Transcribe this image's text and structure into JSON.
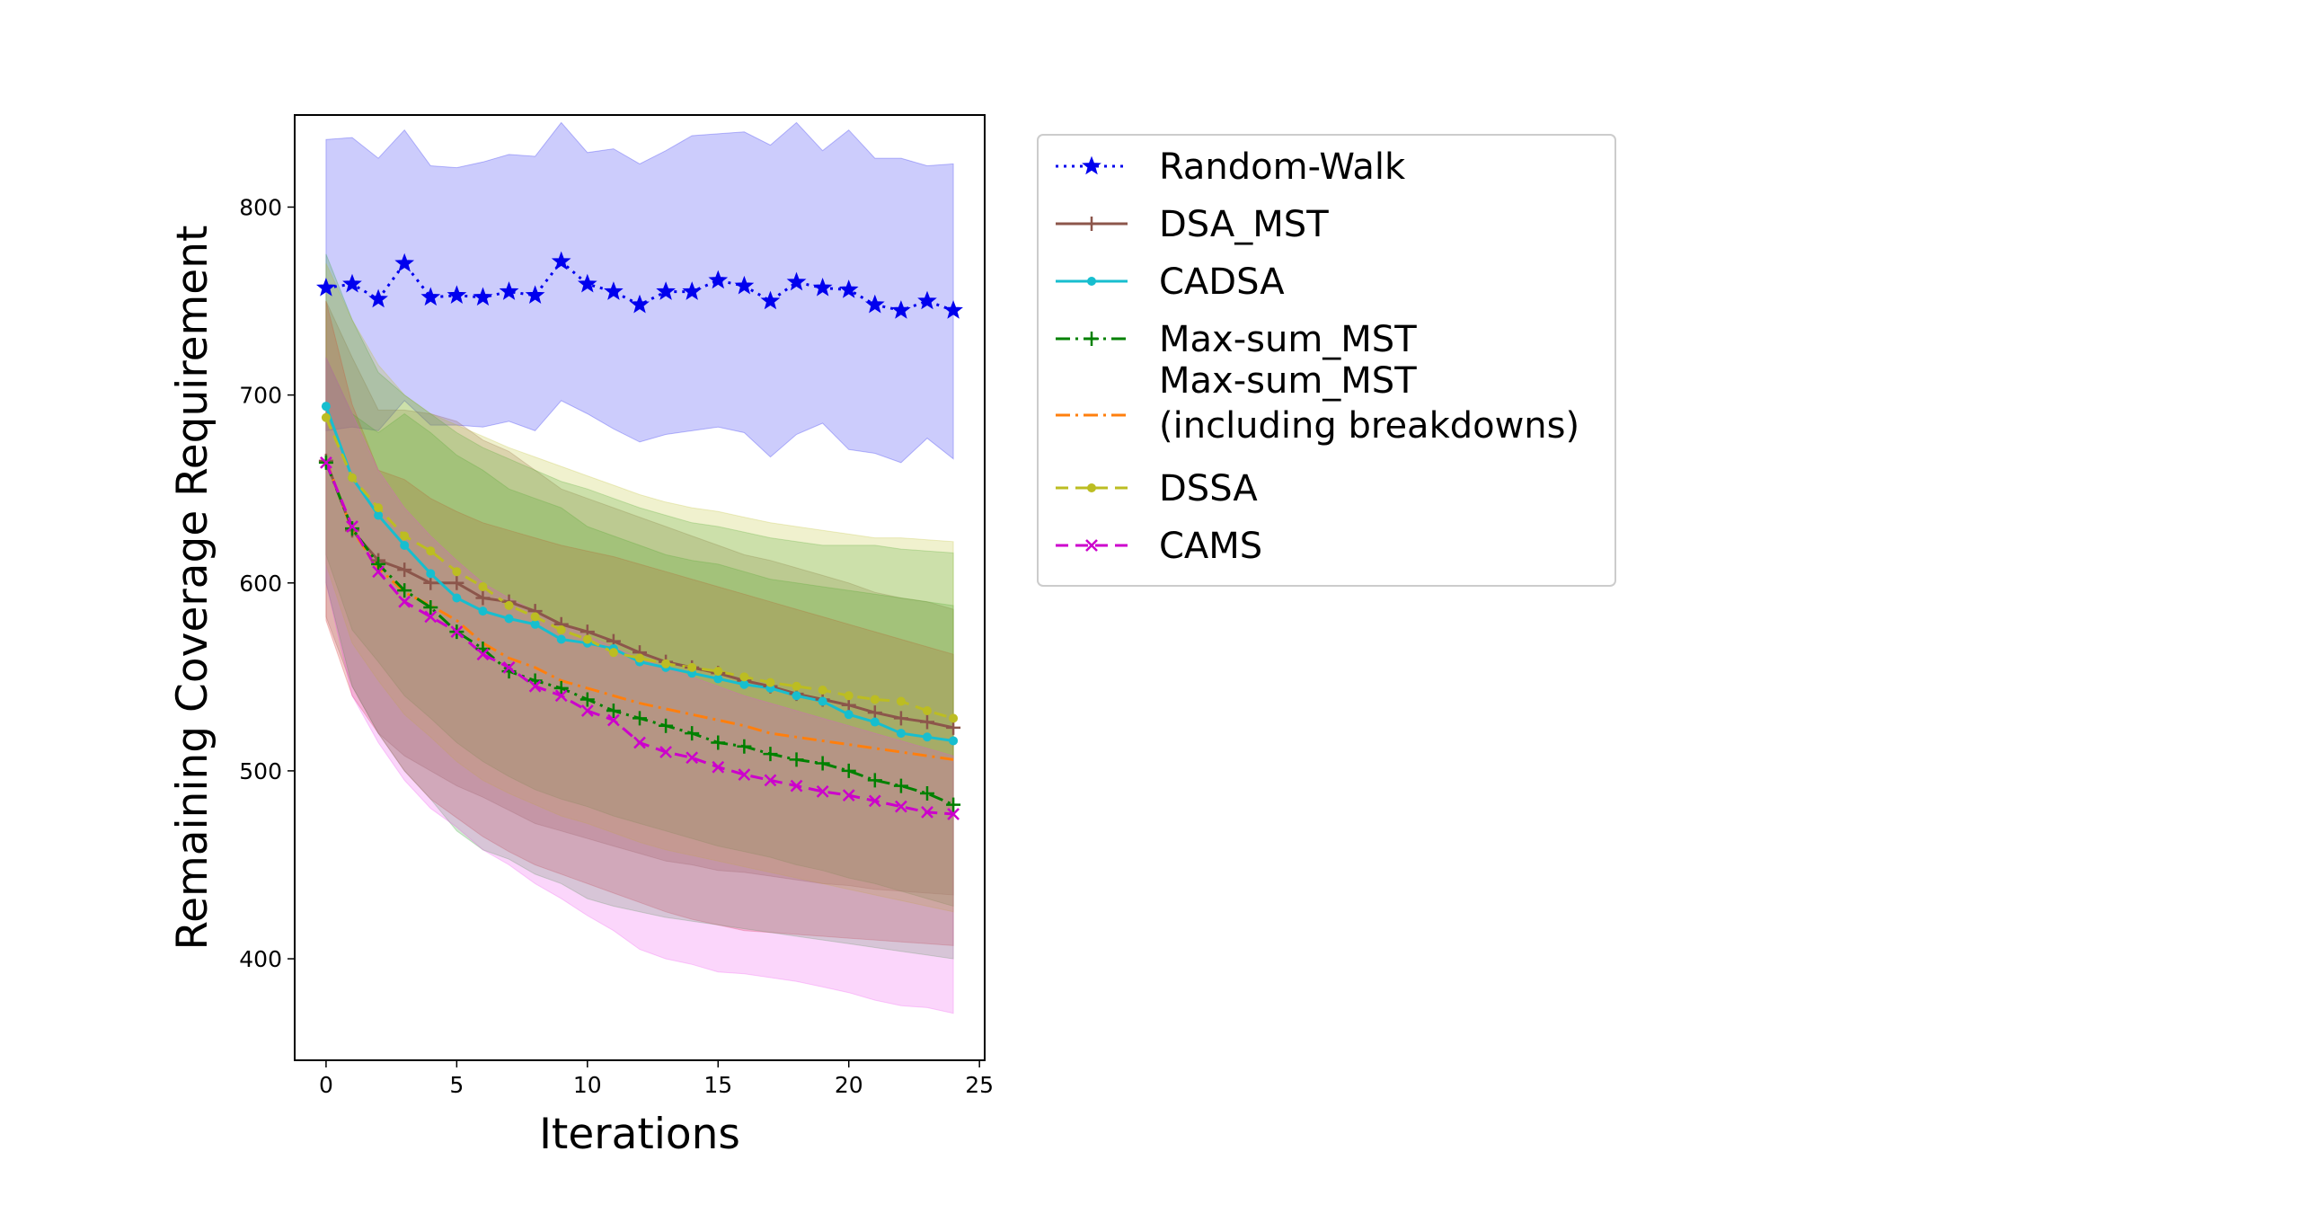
{
  "chart_data": {
    "type": "line",
    "title": "",
    "xlabel": "Iterations",
    "ylabel": "Remaining Coverage Requirement",
    "xlim": [
      -1.2,
      25.2
    ],
    "ylim": [
      346,
      849
    ],
    "xticks": [
      0,
      5,
      10,
      15,
      20,
      25
    ],
    "yticks": [
      400,
      500,
      600,
      700,
      800
    ],
    "grid": false,
    "legend_position": "outside-right-top",
    "x": [
      0,
      1,
      2,
      3,
      4,
      5,
      6,
      7,
      8,
      9,
      10,
      11,
      12,
      13,
      14,
      15,
      16,
      17,
      18,
      19,
      20,
      21,
      22,
      23,
      24
    ],
    "series": [
      {
        "name": "Random-Walk",
        "color": "#0000ee",
        "line_style": "dotted",
        "marker": "star",
        "band_color": "#0000ee",
        "values": [
          757,
          759,
          751,
          770,
          752,
          753,
          752,
          755,
          753,
          771,
          759,
          755,
          748,
          755,
          755,
          761,
          758,
          750,
          760,
          757,
          756,
          748,
          745,
          750,
          745
        ],
        "band_upper": [
          836,
          837,
          826,
          841,
          822,
          821,
          824,
          828,
          827,
          845,
          829,
          831,
          823,
          830,
          838,
          839,
          840,
          833,
          845,
          830,
          841,
          826,
          826,
          822,
          823
        ],
        "band_lower": [
          681,
          683,
          681,
          697,
          684,
          684,
          683,
          686,
          681,
          697,
          690,
          682,
          675,
          679,
          681,
          683,
          680,
          667,
          679,
          685,
          671,
          669,
          664,
          677,
          666
        ]
      },
      {
        "name": "DSA_MST",
        "color": "#8c564b",
        "line_style": "solid",
        "marker": "plus",
        "band_color": "#8c564b",
        "values": [
          665,
          628,
          612,
          607,
          600,
          600,
          592,
          590,
          585,
          578,
          574,
          569,
          563,
          558,
          555,
          552,
          548,
          545,
          541,
          538,
          535,
          531,
          528,
          526,
          523
        ],
        "band_upper": [
          750,
          720,
          692,
          692,
          690,
          686,
          676,
          670,
          660,
          650,
          645,
          640,
          635,
          630,
          625,
          620,
          615,
          612,
          608,
          604,
          600,
          595,
          592,
          590,
          586
        ],
        "band_lower": [
          582,
          545,
          520,
          508,
          500,
          492,
          486,
          479,
          472,
          468,
          464,
          460,
          456,
          452,
          450,
          447,
          446,
          444,
          442,
          440,
          439,
          437,
          436,
          435,
          434
        ]
      },
      {
        "name": "CADSA",
        "color": "#17becf",
        "line_style": "solid",
        "marker": "dot",
        "band_color": "#2ca02c",
        "values": [
          694,
          656,
          636,
          620,
          605,
          592,
          585,
          581,
          578,
          570,
          568,
          565,
          558,
          555,
          552,
          549,
          546,
          544,
          540,
          537,
          530,
          526,
          520,
          518,
          516
        ],
        "band_upper": [
          775,
          740,
          712,
          700,
          690,
          680,
          672,
          666,
          660,
          654,
          650,
          645,
          640,
          636,
          632,
          630,
          627,
          624,
          622,
          620,
          620,
          620,
          618,
          617,
          616
        ],
        "band_lower": [
          615,
          575,
          558,
          540,
          528,
          515,
          505,
          497,
          490,
          485,
          481,
          476,
          472,
          468,
          464,
          460,
          457,
          454,
          450,
          447,
          443,
          440,
          436,
          432,
          428
        ]
      },
      {
        "name": "Max-sum_MST\n(including breakdowns)",
        "color": "#ff7f0e",
        "line_style": "dashdot",
        "marker": "none",
        "band_color": "#d62728",
        "values": [
          665,
          628,
          608,
          595,
          588,
          580,
          568,
          560,
          555,
          548,
          544,
          540,
          536,
          533,
          530,
          527,
          524,
          520,
          518,
          516,
          514,
          512,
          510,
          508,
          506
        ],
        "band_upper": [
          750,
          695,
          660,
          655,
          645,
          638,
          632,
          628,
          624,
          620,
          617,
          614,
          610,
          606,
          602,
          598,
          594,
          590,
          586,
          582,
          578,
          574,
          570,
          566,
          562
        ],
        "band_lower": [
          580,
          540,
          520,
          500,
          485,
          475,
          465,
          457,
          450,
          445,
          440,
          435,
          430,
          425,
          421,
          418,
          415,
          414,
          413,
          412,
          411,
          410,
          409,
          408,
          407
        ]
      },
      {
        "name": "Max-sum_MST",
        "color": "#008000",
        "line_style": "dashdot",
        "marker": "plus",
        "band_color": "#2ca02c",
        "values": [
          664,
          629,
          610,
          596,
          587,
          574,
          565,
          553,
          548,
          544,
          538,
          532,
          528,
          524,
          520,
          515,
          513,
          509,
          506,
          504,
          500,
          495,
          492,
          488,
          482
        ],
        "band_upper": [
          720,
          690,
          680,
          690,
          680,
          668,
          660,
          650,
          645,
          640,
          630,
          625,
          620,
          615,
          612,
          610,
          606,
          602,
          600,
          598,
          596,
          594,
          592,
          590,
          588
        ],
        "band_lower": [
          600,
          545,
          520,
          500,
          485,
          468,
          458,
          453,
          445,
          440,
          432,
          428,
          425,
          422,
          420,
          418,
          416,
          414,
          412,
          410,
          408,
          406,
          404,
          402,
          400
        ]
      },
      {
        "name": "DSSA",
        "color": "#bcbd22",
        "line_style": "dashed",
        "marker": "dot",
        "band_color": "#bcbd22",
        "values": [
          688,
          656,
          640,
          625,
          617,
          606,
          598,
          588,
          582,
          575,
          570,
          563,
          560,
          557,
          555,
          553,
          550,
          547,
          545,
          543,
          540,
          538,
          537,
          532,
          528
        ],
        "band_upper": [
          770,
          740,
          716,
          700,
          690,
          684,
          678,
          672,
          667,
          662,
          657,
          652,
          647,
          643,
          640,
          638,
          635,
          632,
          630,
          628,
          626,
          624,
          624,
          623,
          622
        ],
        "band_lower": [
          610,
          568,
          548,
          530,
          518,
          505,
          495,
          488,
          482,
          476,
          472,
          467,
          462,
          458,
          455,
          452,
          449,
          446,
          443,
          440,
          437,
          434,
          431,
          428,
          425
        ]
      },
      {
        "name": "CAMS",
        "color": "#cc00cc",
        "line_style": "dashed",
        "marker": "x",
        "band_color": "#ee44ee",
        "values": [
          664,
          630,
          606,
          590,
          582,
          574,
          562,
          555,
          545,
          540,
          532,
          527,
          515,
          510,
          507,
          502,
          498,
          495,
          492,
          489,
          487,
          484,
          481,
          478,
          477
        ],
        "band_upper": [
          720,
          690,
          660,
          640,
          625,
          612,
          600,
          592,
          585,
          578,
          572,
          566,
          560,
          555,
          550,
          545,
          540,
          536,
          532,
          528,
          524,
          520,
          516,
          512,
          508
        ],
        "band_lower": [
          600,
          540,
          515,
          495,
          480,
          470,
          458,
          450,
          440,
          432,
          423,
          415,
          405,
          400,
          397,
          393,
          392,
          390,
          388,
          385,
          382,
          378,
          375,
          374,
          371
        ]
      }
    ],
    "legend_order": [
      "Random-Walk",
      "DSA_MST",
      "CADSA",
      "Max-sum_MST",
      "Max-sum_MST\n(including breakdowns)",
      "DSSA",
      "CAMS"
    ]
  }
}
